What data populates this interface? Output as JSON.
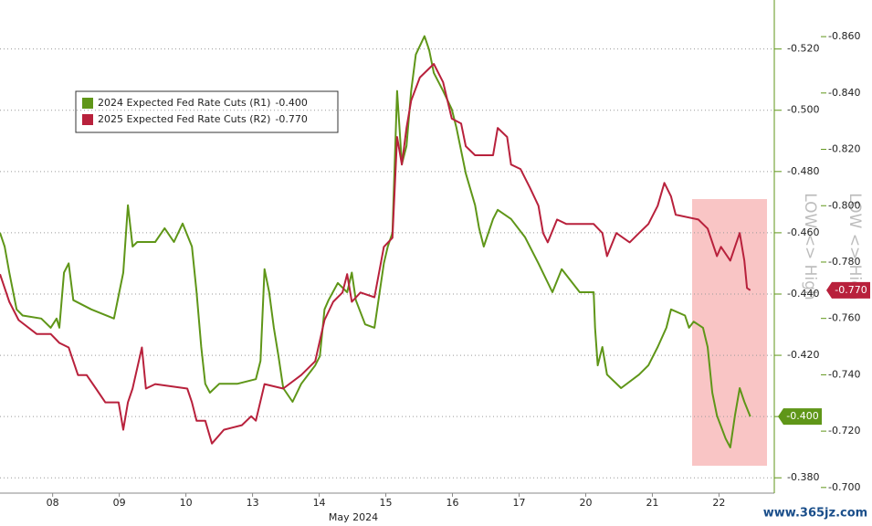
{
  "chart_data": {
    "type": "line",
    "categories": [
      "08",
      "09",
      "10",
      "13",
      "14",
      "15",
      "16",
      "17",
      "20",
      "21",
      "22"
    ],
    "subtitle": "May 2024",
    "xlim": [
      -0.29,
      11.33
    ],
    "xticks": [
      {
        "value": 0.5,
        "label": "08"
      },
      {
        "value": 1.5,
        "label": "09"
      },
      {
        "value": 2.5,
        "label": "10"
      },
      {
        "value": 3.5,
        "label": "13"
      },
      {
        "value": 4.5,
        "label": "14"
      },
      {
        "value": 5.5,
        "label": "15"
      },
      {
        "value": 6.5,
        "label": "16"
      },
      {
        "value": 7.5,
        "label": "17"
      },
      {
        "value": 8.5,
        "label": "20"
      },
      {
        "value": 9.5,
        "label": "21"
      },
      {
        "value": 10.5,
        "label": "22"
      }
    ],
    "ylim": [
      -0.375,
      -0.536
    ],
    "yticks": [
      {
        "value": -0.38,
        "label": "-0.380"
      },
      {
        "value": -0.4,
        "label": "-0.400"
      },
      {
        "value": -0.42,
        "label": "-0.420"
      },
      {
        "value": -0.44,
        "label": "-0.440"
      },
      {
        "value": -0.46,
        "label": "-0.460"
      },
      {
        "value": -0.48,
        "label": "-0.480"
      },
      {
        "value": -0.5,
        "label": "-0.500"
      },
      {
        "value": -0.52,
        "label": "-0.520"
      }
    ],
    "y2lim": [
      -0.698,
      -0.873
    ],
    "y2ticks": [
      {
        "value": -0.7,
        "label": "-0.700"
      },
      {
        "value": -0.72,
        "label": "-0.720"
      },
      {
        "value": -0.74,
        "label": "-0.740"
      },
      {
        "value": -0.76,
        "label": "-0.760"
      },
      {
        "value": -0.78,
        "label": "-0.780"
      },
      {
        "value": -0.8,
        "label": "-0.800"
      },
      {
        "value": -0.82,
        "label": "-0.820"
      },
      {
        "value": -0.84,
        "label": "-0.840"
      },
      {
        "value": -0.86,
        "label": "-0.860"
      }
    ],
    "ylabel": "LOW <> High",
    "y2label": "LOW <> High",
    "grid": true,
    "legend": "upper-left",
    "watermark": "www.365jz.com",
    "series": [
      {
        "name": "2024 Expected Fed Rate Cuts (R1)",
        "color": "#5f9618",
        "axis": "y",
        "last": {
          "value": -0.4,
          "label": "-0.400"
        },
        "x": [
          -0.29,
          -0.22,
          -0.15,
          -0.04,
          0.05,
          0.33,
          0.47,
          0.56,
          0.6,
          0.67,
          0.74,
          0.81,
          1.08,
          1.42,
          1.56,
          1.63,
          1.7,
          1.77,
          2.04,
          2.18,
          2.32,
          2.45,
          2.59,
          2.66,
          2.73,
          2.79,
          2.86,
          3.0,
          3.27,
          3.55,
          3.62,
          3.68,
          3.75,
          3.82,
          3.89,
          3.96,
          4.1,
          4.23,
          4.44,
          4.51,
          4.58,
          4.64,
          4.78,
          4.92,
          4.99,
          5.05,
          5.19,
          5.33,
          5.47,
          5.53,
          5.6,
          5.67,
          5.74,
          5.81,
          5.88,
          5.95,
          6.08,
          6.15,
          6.22,
          6.36,
          6.49,
          6.56,
          6.7,
          6.84,
          6.9,
          6.97,
          7.11,
          7.18,
          7.38,
          7.59,
          7.79,
          8.0,
          8.14,
          8.41,
          8.62,
          8.64,
          8.68,
          8.75,
          8.82,
          9.03,
          9.3,
          9.44,
          9.58,
          9.71,
          9.78,
          9.99,
          10.05,
          10.12,
          10.26,
          10.33,
          10.4,
          10.47,
          10.6,
          10.67,
          10.74,
          10.81,
          10.88,
          10.97
        ],
        "values": [
          -0.46,
          -0.4555,
          -0.447,
          -0.435,
          -0.433,
          -0.432,
          -0.429,
          -0.432,
          -0.429,
          -0.447,
          -0.45,
          -0.438,
          -0.435,
          -0.432,
          -0.447,
          -0.469,
          -0.4555,
          -0.457,
          -0.457,
          -0.4615,
          -0.457,
          -0.463,
          -0.4555,
          -0.4406,
          -0.4227,
          -0.4107,
          -0.4078,
          -0.4107,
          -0.4107,
          -0.4122,
          -0.4182,
          -0.4481,
          -0.4406,
          -0.429,
          -0.4197,
          -0.4093,
          -0.4048,
          -0.4107,
          -0.4167,
          -0.4197,
          -0.435,
          -0.438,
          -0.4436,
          -0.4406,
          -0.447,
          -0.438,
          -0.4301,
          -0.429,
          -0.45,
          -0.4555,
          -0.46,
          -0.5063,
          -0.4824,
          -0.4884,
          -0.5063,
          -0.5182,
          -0.5242,
          -0.5197,
          -0.5122,
          -0.5063,
          -0.5003,
          -0.4943,
          -0.4794,
          -0.469,
          -0.4615,
          -0.4555,
          -0.4645,
          -0.4675,
          -0.4645,
          -0.4585,
          -0.45,
          -0.4406,
          -0.4481,
          -0.4406,
          -0.4406,
          -0.429,
          -0.4167,
          -0.4227,
          -0.4137,
          -0.4093,
          -0.4137,
          -0.4167,
          -0.4227,
          -0.429,
          -0.435,
          -0.433,
          -0.429,
          -0.431,
          -0.429,
          -0.4227,
          -0.4078,
          -0.4003,
          -0.3928,
          -0.3899,
          -0.4003,
          -0.4093,
          -0.4048,
          -0.4
        ]
      },
      {
        "name": "2025 Expected Fed Rate Cuts (R2)",
        "color": "#b8213c",
        "axis": "y2",
        "last": {
          "value": -0.77,
          "label": "-0.770"
        },
        "x": [
          -0.29,
          -0.15,
          -0.01,
          0.26,
          0.47,
          0.6,
          0.74,
          0.88,
          1.01,
          1.15,
          1.29,
          1.49,
          1.56,
          1.63,
          1.7,
          1.84,
          1.9,
          2.04,
          2.52,
          2.59,
          2.66,
          2.79,
          2.89,
          3.07,
          3.34,
          3.48,
          3.55,
          3.68,
          3.96,
          4.23,
          4.44,
          4.58,
          4.71,
          4.85,
          4.92,
          4.99,
          5.12,
          5.33,
          5.47,
          5.6,
          5.67,
          5.74,
          5.81,
          5.88,
          6.01,
          6.22,
          6.36,
          6.49,
          6.63,
          6.7,
          6.84,
          7.11,
          7.18,
          7.32,
          7.38,
          7.52,
          7.66,
          7.79,
          7.86,
          7.93,
          8.07,
          8.21,
          8.62,
          8.75,
          8.82,
          8.96,
          9.16,
          9.3,
          9.44,
          9.58,
          9.68,
          9.78,
          9.85,
          10.19,
          10.33,
          10.47,
          10.53,
          10.67,
          10.74,
          10.81,
          10.88,
          10.92,
          10.97
        ],
        "values": [
          -0.7757,
          -0.7659,
          -0.7594,
          -0.7545,
          -0.7545,
          -0.7513,
          -0.7497,
          -0.7399,
          -0.7399,
          -0.7351,
          -0.7302,
          -0.7302,
          -0.7205,
          -0.7302,
          -0.7351,
          -0.7497,
          -0.7351,
          -0.7367,
          -0.7351,
          -0.7302,
          -0.7237,
          -0.7237,
          -0.7156,
          -0.7205,
          -0.7221,
          -0.7253,
          -0.7237,
          -0.7367,
          -0.7351,
          -0.7399,
          -0.7448,
          -0.7594,
          -0.7659,
          -0.7692,
          -0.7757,
          -0.7659,
          -0.7692,
          -0.7675,
          -0.7854,
          -0.7886,
          -0.8244,
          -0.8146,
          -0.8276,
          -0.8373,
          -0.8455,
          -0.8503,
          -0.8438,
          -0.8309,
          -0.8292,
          -0.8211,
          -0.8179,
          -0.8179,
          -0.8276,
          -0.8244,
          -0.8146,
          -0.813,
          -0.8065,
          -0.8,
          -0.7903,
          -0.787,
          -0.7951,
          -0.7935,
          -0.7935,
          -0.7903,
          -0.7821,
          -0.7903,
          -0.787,
          -0.7903,
          -0.7935,
          -0.8,
          -0.8081,
          -0.8033,
          -0.7968,
          -0.7951,
          -0.7919,
          -0.7821,
          -0.7854,
          -0.7805,
          -0.7854,
          -0.7903,
          -0.7805,
          -0.7708,
          -0.77
        ]
      }
    ]
  }
}
